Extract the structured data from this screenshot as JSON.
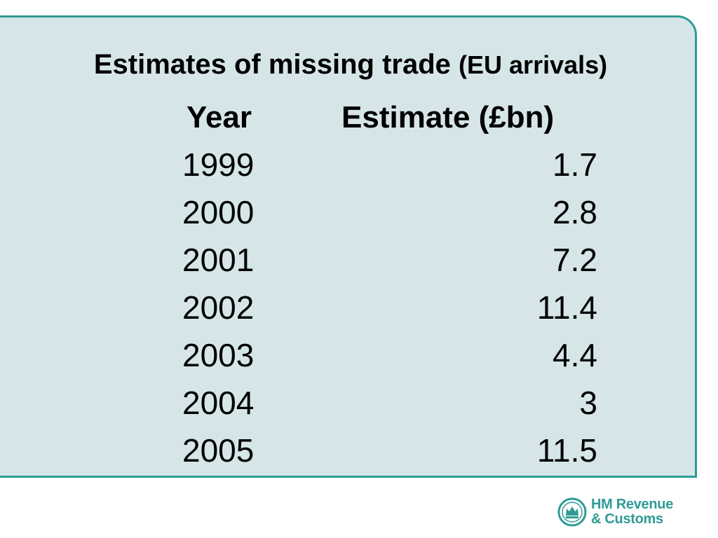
{
  "title": {
    "main": "Estimates of missing trade",
    "sub": "(EU arrivals)"
  },
  "table": {
    "headers": {
      "year": "Year",
      "estimate": "Estimate (£bn)"
    },
    "rows": [
      {
        "year": "1999",
        "estimate": "1.7"
      },
      {
        "year": "2000",
        "estimate": "2.8"
      },
      {
        "year": "2001",
        "estimate": "7.2"
      },
      {
        "year": "2002",
        "estimate": "11.4"
      },
      {
        "year": "2003",
        "estimate": "4.4"
      },
      {
        "year": "2004",
        "estimate": "3"
      },
      {
        "year": "2005",
        "estimate": "11.5"
      }
    ]
  },
  "logo": {
    "line1": "HM Revenue",
    "line2": "& Customs",
    "icon": "crown-crest-icon",
    "color": "#2f9b95"
  },
  "colors": {
    "panel_background": "#d6e6e8",
    "panel_border": "#2f9b95"
  }
}
